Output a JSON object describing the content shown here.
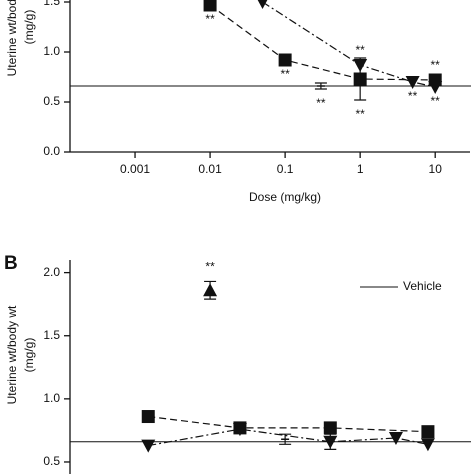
{
  "chart_data": [
    {
      "type": "line",
      "xlabel": "Dose (mg/kg)",
      "ylabel": [
        "Uterine wt/body wt",
        "(mg/g)"
      ],
      "xscale": "log",
      "xlim": [
        0.0001,
        30
      ],
      "xticks": [
        0.001,
        0.01,
        0.1,
        1,
        10
      ],
      "ylim": [
        0,
        1.6
      ],
      "yticks": [
        {
          "value": 0,
          "label": "0.0"
        },
        0.5,
        {
          "value": 1,
          "label": "1.0"
        },
        1.5
      ],
      "reference_line": {
        "value": 0.66
      },
      "series": [
        {
          "marker": "square",
          "dash": "7,4",
          "x": [
            0.01,
            0.1,
            1,
            10
          ],
          "values": [
            1.47,
            0.92,
            0.73,
            0.72
          ],
          "errors": [
            null,
            null,
            0.21,
            null
          ],
          "annotations": [
            "**",
            "**",
            "**",
            "**"
          ],
          "annotation_side": [
            "below",
            "below",
            "below",
            "above"
          ]
        },
        {
          "marker": "triangle-down",
          "dash": "8,3,2,3",
          "x": [
            0.05,
            1,
            5,
            10
          ],
          "values": [
            1.5,
            0.87,
            0.7,
            0.65
          ],
          "annotations": [
            null,
            "**",
            "**",
            "**"
          ],
          "annotation_side": [
            null,
            "above",
            "below",
            "below"
          ]
        },
        {
          "marker": "tick",
          "x": [
            0.3
          ],
          "values": [
            0.66
          ],
          "errors": [
            0.03
          ],
          "annotations": [
            "**"
          ],
          "annotation_side": [
            "below"
          ]
        }
      ]
    },
    {
      "type": "line",
      "panel_label": "B",
      "ylabel": [
        "Uterine wt/body wt",
        "(mg/g)"
      ],
      "xscale": "log",
      "xlim": [
        0.0001,
        30
      ],
      "ylim": [
        0.4,
        2.1
      ],
      "yticks": [
        0.5,
        {
          "value": 1,
          "label": "1.0"
        },
        1.5,
        {
          "value": 2,
          "label": "2.0"
        }
      ],
      "reference_line": {
        "value": 0.66,
        "label": "Vehicle"
      },
      "series": [
        {
          "marker": "square",
          "dash": "7,4",
          "x": [
            0.0015,
            0.025,
            0.4,
            8
          ],
          "values": [
            0.86,
            0.77,
            0.77,
            0.74
          ]
        },
        {
          "marker": "triangle-down",
          "dash": "8,3,2,3",
          "x": [
            0.0015,
            0.025,
            0.4,
            3,
            8
          ],
          "values": [
            0.63,
            0.76,
            0.66,
            0.69,
            0.64
          ],
          "errors": [
            null,
            null,
            0.06,
            null,
            null
          ]
        },
        {
          "marker": "triangle-up",
          "x": [
            0.01
          ],
          "values": [
            1.86
          ],
          "errors": [
            0.07
          ],
          "annotations": [
            "**"
          ],
          "annotation_side": [
            "above"
          ]
        },
        {
          "marker": "tick",
          "x": [
            0.1
          ],
          "values": [
            0.68
          ],
          "errors": [
            0.04
          ]
        }
      ]
    }
  ]
}
